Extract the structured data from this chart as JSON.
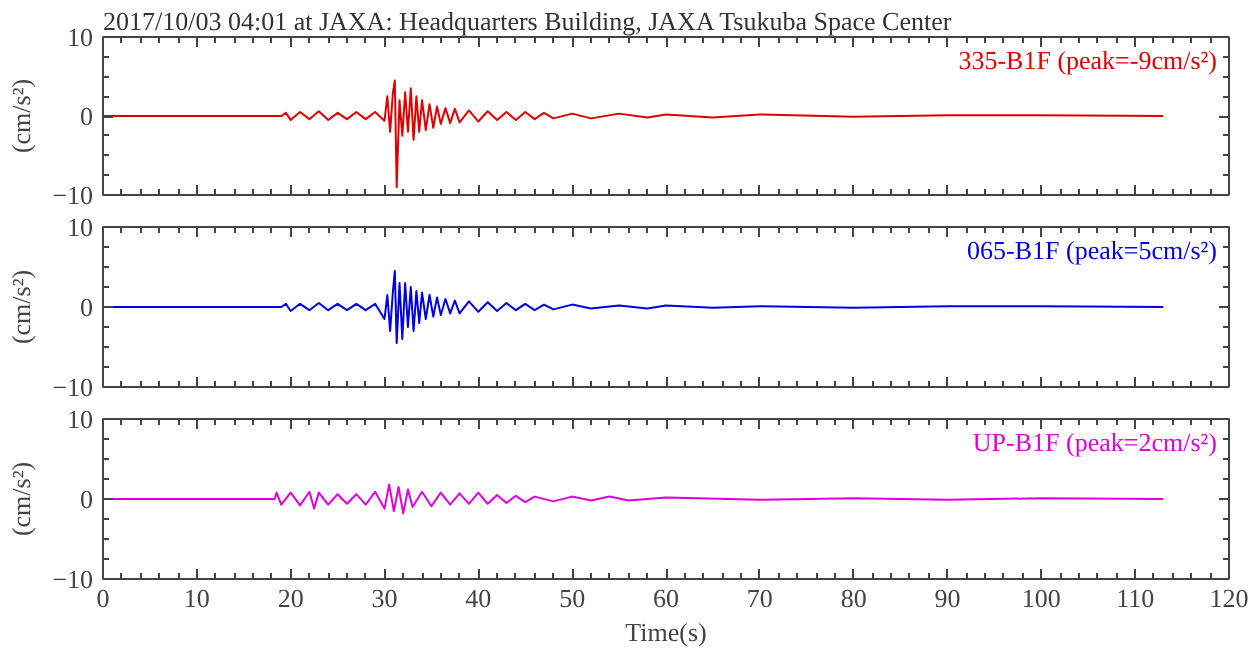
{
  "chart_data": [
    {
      "type": "line",
      "title": "2017/10/03 04:01 at JAXA: Headquarters Building, JAXA Tsukuba Space Center",
      "ylabel": "(cm/s²)",
      "xlim": [
        0,
        120
      ],
      "xticks": [
        0,
        10,
        20,
        30,
        40,
        50,
        60,
        70,
        80,
        90,
        100,
        110,
        120
      ],
      "ylim": [
        -10,
        10
      ],
      "yticks": [
        -10,
        0,
        10
      ],
      "tick_labels": "y",
      "grid": false,
      "x": [
        0,
        19,
        19.5,
        20,
        21,
        22,
        23,
        24,
        25,
        26,
        27,
        28,
        29,
        30,
        30.3,
        30.6,
        30.9,
        31.1,
        31.3,
        31.6,
        31.9,
        32.2,
        32.5,
        32.8,
        33.1,
        33.4,
        33.7,
        34,
        34.4,
        34.8,
        35.2,
        35.6,
        36,
        36.5,
        37,
        37.5,
        38,
        39,
        40,
        41,
        42,
        43,
        44,
        45,
        46,
        47,
        48,
        50,
        52,
        55,
        58,
        60,
        65,
        70,
        80,
        90,
        100,
        113
      ],
      "series": [
        {
          "name": "335-B1F (peak=-9cm/s²)",
          "color": "#dd0000",
          "values": [
            0,
            0,
            0.4,
            -0.5,
            0.5,
            -0.4,
            0.6,
            -0.5,
            0.4,
            -0.4,
            0.5,
            -0.4,
            0.5,
            -0.6,
            2.5,
            -2,
            3,
            4.5,
            -9,
            2,
            -2.5,
            3,
            -2,
            3.5,
            -3,
            2.5,
            -2,
            2,
            -1.8,
            1.5,
            -1.5,
            1.2,
            -1,
            1,
            -0.9,
            0.9,
            -0.8,
            0.7,
            -0.7,
            0.6,
            -0.5,
            0.5,
            -0.5,
            0.5,
            -0.4,
            0.4,
            -0.3,
            0.3,
            -0.3,
            0.3,
            -0.2,
            0.2,
            -0.2,
            0.2,
            -0.1,
            0.1,
            0.1,
            0
          ]
        }
      ]
    },
    {
      "type": "line",
      "ylabel": "(cm/s²)",
      "xlim": [
        0,
        120
      ],
      "xticks": [
        0,
        10,
        20,
        30,
        40,
        50,
        60,
        70,
        80,
        90,
        100,
        110,
        120
      ],
      "ylim": [
        -10,
        10
      ],
      "yticks": [
        -10,
        0,
        10
      ],
      "tick_labels": "y",
      "grid": false,
      "x": [
        0,
        19,
        19.5,
        20,
        21,
        22,
        23,
        24,
        25,
        26,
        27,
        28,
        29,
        30,
        30.3,
        30.6,
        30.9,
        31.1,
        31.3,
        31.6,
        31.9,
        32.2,
        32.5,
        32.8,
        33.1,
        33.4,
        33.7,
        34,
        34.4,
        34.8,
        35.2,
        35.6,
        36,
        36.5,
        37,
        37.5,
        38,
        39,
        40,
        41,
        42,
        43,
        44,
        45,
        46,
        47,
        48,
        50,
        52,
        55,
        58,
        60,
        65,
        70,
        80,
        90,
        100,
        113
      ],
      "series": [
        {
          "name": "065-B1F (peak=5cm/s²)",
          "color": "#0000dd",
          "values": [
            0,
            0,
            0.4,
            -0.5,
            0.4,
            -0.4,
            0.5,
            -0.4,
            0.4,
            -0.4,
            0.4,
            -0.4,
            0.4,
            -1.5,
            1.5,
            -3,
            2,
            4.5,
            -4.5,
            3,
            -4,
            3,
            -2.5,
            2.5,
            -3,
            2,
            -2,
            1.8,
            -1.5,
            1.5,
            -1.2,
            1.2,
            -1,
            1,
            -0.8,
            0.8,
            -0.8,
            0.7,
            -0.6,
            0.6,
            -0.5,
            0.5,
            -0.4,
            0.4,
            -0.4,
            0.3,
            -0.3,
            0.3,
            -0.2,
            0.2,
            -0.2,
            0.2,
            -0.1,
            0.1,
            -0.1,
            0.1,
            0.1,
            0
          ]
        }
      ]
    },
    {
      "type": "line",
      "ylabel": "(cm/s²)",
      "xlabel": "Time(s)",
      "xlim": [
        0,
        120
      ],
      "xticks": [
        0,
        10,
        20,
        30,
        40,
        50,
        60,
        70,
        80,
        90,
        100,
        110,
        120
      ],
      "ylim": [
        -10,
        10
      ],
      "yticks": [
        -10,
        0,
        10
      ],
      "grid": false,
      "x": [
        0,
        18.3,
        18.5,
        19,
        20,
        21,
        22,
        22.5,
        23,
        24,
        25,
        26,
        27,
        28,
        29,
        30,
        30.5,
        31,
        31.5,
        32,
        32.5,
        33,
        34,
        35,
        36,
        37,
        38,
        39,
        40,
        41,
        42,
        43,
        44,
        45,
        46,
        48,
        50,
        52,
        54,
        56,
        60,
        70,
        80,
        90,
        100,
        113
      ],
      "series": [
        {
          "name": "UP-B1F (peak=2cm/s²)",
          "color": "#dd00dd",
          "values": [
            0,
            0,
            0.8,
            -0.7,
            0.8,
            -0.8,
            0.9,
            -1.2,
            0.8,
            -0.7,
            0.6,
            -0.6,
            0.6,
            -0.7,
            0.9,
            -1.2,
            1.8,
            -1.5,
            1.5,
            -1.8,
            1.2,
            -1,
            0.9,
            -0.9,
            0.8,
            -0.7,
            0.7,
            -0.6,
            0.8,
            -0.6,
            0.5,
            -0.5,
            0.4,
            -0.4,
            0.3,
            -0.3,
            0.3,
            -0.2,
            0.3,
            -0.2,
            0.2,
            -0.1,
            0.1,
            -0.1,
            0.1,
            0
          ]
        }
      ]
    }
  ]
}
